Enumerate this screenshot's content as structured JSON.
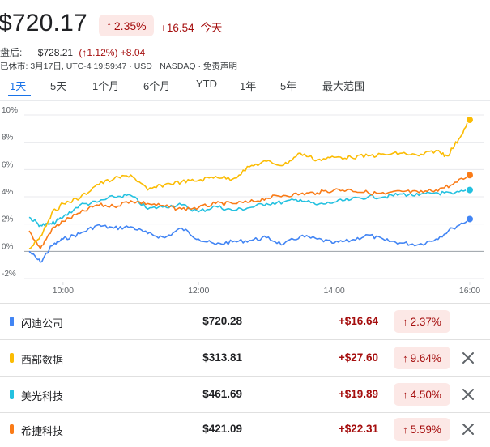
{
  "quote": {
    "price": "$720.17",
    "change_pct": "2.35%",
    "change_abs": "+16.54",
    "change_word": "今天",
    "arrow": "↑"
  },
  "after_hours": {
    "label": "盘后:",
    "price": "$728.21",
    "pct_text": "(↑1.12%)",
    "abs": "+8.04"
  },
  "meta_line": "已休市: 3月17日, UTC-4 19:59:47 · USD · NASDAQ · 免责声明",
  "tabs": [
    {
      "label": "1天",
      "active": true
    },
    {
      "label": "5天"
    },
    {
      "label": "1个月"
    },
    {
      "label": "6个月"
    },
    {
      "label": "YTD"
    },
    {
      "label": "1年"
    },
    {
      "label": "5年"
    },
    {
      "label": "最大范围"
    }
  ],
  "chart_data": {
    "type": "line",
    "x_ticks": [
      "10:00",
      "12:00",
      "14:00",
      "16:00"
    ],
    "y_ticks": [
      "10%",
      "8%",
      "6%",
      "4%",
      "2%",
      "0%",
      "-2%"
    ],
    "x_range": [
      "09:30",
      "16:00"
    ],
    "ylim": [
      -2,
      10
    ],
    "baseline": 0,
    "series": [
      {
        "name": "闪迪公司",
        "color": "#4285f4",
        "final": 2.37,
        "points": [
          [
            "09:30",
            0.0
          ],
          [
            "09:40",
            -0.8
          ],
          [
            "09:50",
            0.4
          ],
          [
            "10:00",
            0.9
          ],
          [
            "10:15",
            1.3
          ],
          [
            "10:30",
            1.9
          ],
          [
            "10:45",
            1.7
          ],
          [
            "11:00",
            1.8
          ],
          [
            "11:15",
            1.3
          ],
          [
            "11:30",
            1.0
          ],
          [
            "11:45",
            1.7
          ],
          [
            "12:00",
            0.9
          ],
          [
            "12:15",
            0.5
          ],
          [
            "12:30",
            0.7
          ],
          [
            "12:45",
            0.8
          ],
          [
            "13:00",
            1.0
          ],
          [
            "13:15",
            0.5
          ],
          [
            "13:30",
            1.1
          ],
          [
            "13:45",
            0.9
          ],
          [
            "14:00",
            0.6
          ],
          [
            "14:15",
            0.8
          ],
          [
            "14:30",
            1.2
          ],
          [
            "14:45",
            0.8
          ],
          [
            "15:00",
            0.6
          ],
          [
            "15:15",
            0.5
          ],
          [
            "15:30",
            0.9
          ],
          [
            "15:45",
            1.7
          ],
          [
            "16:00",
            2.37
          ]
        ]
      },
      {
        "name": "西部数据",
        "color": "#fbbc04",
        "final": 9.64,
        "points": [
          [
            "09:30",
            0.2
          ],
          [
            "09:40",
            1.1
          ],
          [
            "09:50",
            2.8
          ],
          [
            "10:00",
            3.5
          ],
          [
            "10:15",
            3.9
          ],
          [
            "10:30",
            4.9
          ],
          [
            "10:45",
            5.3
          ],
          [
            "11:00",
            5.6
          ],
          [
            "11:15",
            4.5
          ],
          [
            "11:30",
            4.9
          ],
          [
            "11:45",
            5.1
          ],
          [
            "12:00",
            5.2
          ],
          [
            "12:15",
            5.5
          ],
          [
            "12:30",
            5.3
          ],
          [
            "12:45",
            6.2
          ],
          [
            "13:00",
            6.6
          ],
          [
            "13:15",
            6.3
          ],
          [
            "13:30",
            7.2
          ],
          [
            "13:45",
            6.7
          ],
          [
            "14:00",
            6.9
          ],
          [
            "14:15",
            6.9
          ],
          [
            "14:30",
            7.0
          ],
          [
            "14:45",
            7.1
          ],
          [
            "15:00",
            7.2
          ],
          [
            "15:15",
            7.0
          ],
          [
            "15:30",
            7.4
          ],
          [
            "15:40",
            7.0
          ],
          [
            "15:50",
            8.2
          ],
          [
            "16:00",
            9.64
          ]
        ]
      },
      {
        "name": "美光科技",
        "color": "#24c1e0",
        "final": 4.5,
        "points": [
          [
            "09:30",
            2.5
          ],
          [
            "09:40",
            1.9
          ],
          [
            "09:50",
            2.0
          ],
          [
            "10:00",
            2.5
          ],
          [
            "10:15",
            3.4
          ],
          [
            "10:30",
            3.6
          ],
          [
            "10:45",
            4.0
          ],
          [
            "11:00",
            4.1
          ],
          [
            "11:15",
            3.1
          ],
          [
            "11:30",
            3.3
          ],
          [
            "11:45",
            3.4
          ],
          [
            "12:00",
            2.9
          ],
          [
            "12:15",
            3.3
          ],
          [
            "12:30",
            3.0
          ],
          [
            "12:45",
            3.2
          ],
          [
            "13:00",
            3.5
          ],
          [
            "13:15",
            3.6
          ],
          [
            "13:30",
            3.8
          ],
          [
            "13:45",
            3.4
          ],
          [
            "14:00",
            3.6
          ],
          [
            "14:15",
            3.8
          ],
          [
            "14:30",
            4.0
          ],
          [
            "14:45",
            4.0
          ],
          [
            "15:00",
            4.2
          ],
          [
            "15:15",
            4.1
          ],
          [
            "15:30",
            4.3
          ],
          [
            "15:45",
            4.2
          ],
          [
            "16:00",
            4.5
          ]
        ]
      },
      {
        "name": "希捷科技",
        "color": "#fa7b17",
        "final": 5.59,
        "points": [
          [
            "09:30",
            1.5
          ],
          [
            "09:40",
            0.2
          ],
          [
            "09:50",
            1.6
          ],
          [
            "10:00",
            2.2
          ],
          [
            "10:15",
            2.8
          ],
          [
            "10:30",
            3.4
          ],
          [
            "10:45",
            3.3
          ],
          [
            "11:00",
            3.7
          ],
          [
            "11:15",
            3.5
          ],
          [
            "11:30",
            3.3
          ],
          [
            "11:45",
            3.1
          ],
          [
            "12:00",
            3.2
          ],
          [
            "12:15",
            3.5
          ],
          [
            "12:30",
            3.5
          ],
          [
            "12:45",
            3.6
          ],
          [
            "13:00",
            3.9
          ],
          [
            "13:15",
            4.1
          ],
          [
            "13:30",
            4.2
          ],
          [
            "13:45",
            4.3
          ],
          [
            "14:00",
            4.5
          ],
          [
            "14:15",
            4.5
          ],
          [
            "14:30",
            4.3
          ],
          [
            "14:45",
            4.2
          ],
          [
            "15:00",
            4.4
          ],
          [
            "15:15",
            4.3
          ],
          [
            "15:30",
            4.5
          ],
          [
            "15:45",
            4.9
          ],
          [
            "16:00",
            5.59
          ]
        ]
      }
    ]
  },
  "compare": [
    {
      "name": "闪迪公司",
      "price": "$720.28",
      "change": "+$16.64",
      "pct": "2.37%",
      "color": "#4285f4",
      "removable": false
    },
    {
      "name": "西部数据",
      "price": "$313.81",
      "change": "+$27.60",
      "pct": "9.64%",
      "color": "#fbbc04",
      "removable": true
    },
    {
      "name": "美光科技",
      "price": "$461.69",
      "change": "+$19.89",
      "pct": "4.50%",
      "color": "#24c1e0",
      "removable": true
    },
    {
      "name": "希捷科技",
      "price": "$421.09",
      "change": "+$22.31",
      "pct": "5.59%",
      "color": "#fa7b17",
      "removable": true
    }
  ],
  "icons": {
    "remove": "close-icon",
    "up": "arrow-up-icon"
  }
}
